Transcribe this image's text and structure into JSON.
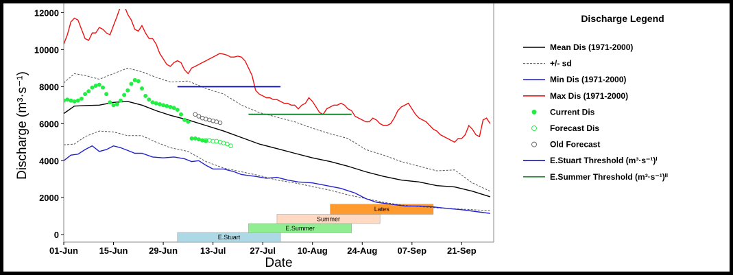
{
  "chart_data": {
    "type": "line",
    "xlabel": "Date",
    "ylabel": "Discharge (m³·s⁻¹)",
    "x_ticks": [
      "01-Jun",
      "15-Jun",
      "29-Jun",
      "13-Jul",
      "27-Jul",
      "10-Aug",
      "24-Aug",
      "07-Sep",
      "21-Sep"
    ],
    "y_ticks": [
      0,
      2000,
      4000,
      6000,
      8000,
      10000,
      12000
    ],
    "xlim": [
      0,
      121
    ],
    "ylim": [
      -400,
      12200
    ],
    "x_unit": "days since 01-Jun",
    "series": [
      {
        "name": "Mean Dis (1971-2000)",
        "color": "#000000",
        "style": "solid",
        "x": [
          0,
          3,
          6,
          10,
          14,
          18,
          22,
          26,
          30,
          35,
          40,
          45,
          50,
          55,
          60,
          65,
          70,
          75,
          80,
          85,
          90,
          95,
          100,
          105,
          110,
          115,
          120
        ],
        "y": [
          6550,
          6950,
          6980,
          7000,
          7150,
          7200,
          7000,
          6700,
          6450,
          6200,
          5900,
          5600,
          5250,
          4900,
          4650,
          4400,
          4150,
          3950,
          3700,
          3400,
          3150,
          2950,
          2850,
          2650,
          2580,
          2350,
          2050
        ]
      },
      {
        "name": "+/- sd (upper)",
        "color": "#555555",
        "style": "dashed",
        "x": [
          0,
          3,
          6,
          10,
          14,
          18,
          22,
          26,
          30,
          35,
          40,
          45,
          50,
          55,
          60,
          65,
          70,
          75,
          80,
          85,
          90,
          95,
          100,
          105,
          110,
          115,
          120
        ],
        "y": [
          8200,
          8700,
          8600,
          8400,
          8700,
          9000,
          8800,
          8500,
          8250,
          8300,
          7900,
          7600,
          7000,
          6600,
          6350,
          6100,
          5750,
          5450,
          5200,
          4600,
          4300,
          3950,
          3700,
          3450,
          3500,
          2800,
          2350
        ]
      },
      {
        "name": "+/- sd (lower)",
        "color": "#555555",
        "style": "dashed",
        "x": [
          0,
          3,
          6,
          10,
          14,
          18,
          22,
          26,
          30,
          35,
          40,
          45,
          50,
          55,
          60,
          65,
          70,
          75,
          80,
          85,
          90,
          95,
          100,
          105,
          110,
          115,
          120
        ],
        "y": [
          4850,
          4900,
          5300,
          5600,
          5550,
          5350,
          5350,
          5000,
          4700,
          4500,
          3950,
          3600,
          3400,
          3200,
          2950,
          2800,
          2600,
          2400,
          2150,
          1950,
          1750,
          1600,
          1520,
          1450,
          1400,
          1350,
          1300
        ]
      },
      {
        "name": "Min Dis (1971-2000)",
        "color": "#2222cc",
        "style": "solid",
        "x": [
          0,
          2,
          4,
          6,
          8,
          10,
          12,
          14,
          16,
          18,
          20,
          22,
          25,
          28,
          31,
          34,
          36,
          38,
          40,
          42,
          45,
          48,
          50,
          52,
          54,
          57,
          60,
          63,
          66,
          70,
          74,
          78,
          82,
          85,
          88,
          92,
          96,
          100,
          104,
          108,
          112,
          116,
          120
        ],
        "y": [
          4000,
          4300,
          4350,
          4600,
          4800,
          4500,
          4600,
          4800,
          4700,
          4550,
          4400,
          4400,
          4200,
          4150,
          4200,
          4100,
          3950,
          4000,
          3750,
          3550,
          3550,
          3400,
          3250,
          3200,
          3150,
          3050,
          3100,
          2950,
          2850,
          2800,
          2650,
          2500,
          2250,
          1950,
          1750,
          1650,
          1550,
          1550,
          1500,
          1420,
          1350,
          1250,
          1150
        ]
      },
      {
        "name": "Max Dis (1971-2000)",
        "color": "#ee1111",
        "style": "solid",
        "x": [
          0,
          1,
          2,
          3,
          4,
          5,
          6,
          7,
          8,
          9,
          10,
          11,
          12,
          13,
          14,
          15,
          16,
          17,
          18,
          19,
          20,
          21,
          22,
          23,
          24,
          25,
          26,
          27,
          28,
          29,
          30,
          31,
          32,
          33,
          34,
          35,
          36,
          37,
          38,
          39,
          40,
          41,
          42,
          43,
          44,
          45,
          46,
          47,
          48,
          49,
          50,
          51,
          52,
          53,
          54,
          55,
          56,
          57,
          58,
          59,
          60,
          61,
          62,
          63,
          64,
          65,
          66,
          67,
          68,
          69,
          70,
          71,
          72,
          73,
          74,
          75,
          76,
          77,
          78,
          79,
          80,
          81,
          82,
          83,
          84,
          85,
          86,
          87,
          88,
          89,
          90,
          91,
          92,
          93,
          94,
          95,
          96,
          97,
          98,
          99,
          100,
          101,
          102,
          103,
          104,
          105,
          106,
          107,
          108,
          109,
          110,
          111,
          112,
          113,
          114,
          115,
          116,
          117,
          118,
          119,
          120
        ],
        "y": [
          10300,
          10800,
          11500,
          11700,
          11600,
          11100,
          10600,
          10500,
          10900,
          10900,
          11200,
          11100,
          10900,
          10800,
          11300,
          11800,
          12350,
          12400,
          11900,
          11600,
          11100,
          11000,
          11300,
          10900,
          10600,
          10600,
          10300,
          9800,
          9500,
          9200,
          9100,
          9300,
          9400,
          9300,
          8900,
          8700,
          9000,
          9100,
          9200,
          9300,
          9400,
          9500,
          9600,
          9700,
          9800,
          9750,
          9700,
          9600,
          9600,
          9650,
          9600,
          9400,
          9000,
          8600,
          7800,
          7600,
          7500,
          7400,
          7400,
          7300,
          7300,
          7200,
          7100,
          7100,
          7000,
          7000,
          6800,
          7000,
          7100,
          7400,
          7200,
          6900,
          6600,
          6500,
          6800,
          6900,
          7000,
          7000,
          7100,
          7000,
          6800,
          6700,
          6400,
          6300,
          6200,
          6100,
          6100,
          6300,
          6200,
          6000,
          5900,
          5900,
          6000,
          6300,
          6700,
          6900,
          7000,
          7100,
          6800,
          6500,
          6300,
          6200,
          6100,
          5900,
          5700,
          5600,
          5400,
          5300,
          5200,
          5100,
          5000,
          5200,
          5200,
          5400,
          5900,
          5700,
          5400,
          5300,
          6200,
          6300,
          6000
        ]
      },
      {
        "name": "Current Dis",
        "color": "#22ee44",
        "style": "filled-dots",
        "x": [
          0,
          1,
          2,
          3,
          4,
          5,
          6,
          7,
          8,
          9,
          10,
          11,
          12,
          13,
          14,
          15,
          16,
          17,
          18,
          19,
          20,
          21,
          22,
          23,
          24,
          25,
          26,
          27,
          28,
          29,
          30,
          31,
          32,
          33,
          34,
          35,
          36,
          37,
          38,
          39,
          40
        ],
        "y": [
          7250,
          7300,
          7250,
          7200,
          7250,
          7350,
          7600,
          7750,
          7950,
          8050,
          8100,
          7950,
          7600,
          7150,
          7000,
          7050,
          7250,
          7550,
          7800,
          8150,
          8350,
          8300,
          7900,
          7500,
          7300,
          7150,
          7100,
          7050,
          7000,
          6950,
          6900,
          6850,
          6750,
          6500,
          6200,
          6100,
          5200,
          5200,
          5150,
          5100,
          5050
        ]
      },
      {
        "name": "Forecast Dis",
        "color": "#22ee44",
        "style": "open-dots",
        "x": [
          40,
          41,
          42,
          43,
          44,
          45,
          46,
          47
        ],
        "y": [
          5100,
          5100,
          5050,
          5050,
          5000,
          4950,
          4900,
          4800
        ]
      },
      {
        "name": "Old Forecast",
        "color": "#666666",
        "style": "open-dots",
        "x": [
          37,
          38,
          39,
          40,
          41,
          42,
          43,
          44
        ],
        "y": [
          6500,
          6400,
          6300,
          6250,
          6200,
          6150,
          6100,
          6050
        ]
      }
    ],
    "thresholds": [
      {
        "name": "E.Stuart Threshold",
        "color": "#1a1aa0",
        "x": [
          32,
          61
        ],
        "y": 8000
      },
      {
        "name": "E.Summer Threshold",
        "color": "#1a8a2e",
        "x": [
          52,
          81
        ],
        "y": 6500
      }
    ],
    "seasons": [
      {
        "label": "E.Stuart",
        "x": [
          32,
          61
        ],
        "y": [
          -400,
          120
        ],
        "color": "#add8e6"
      },
      {
        "label": "E.Summer",
        "x": [
          52,
          81
        ],
        "y": [
          100,
          600
        ],
        "color": "#90ee90"
      },
      {
        "label": "Summer",
        "x": [
          60,
          89
        ],
        "y": [
          600,
          1100
        ],
        "color": "#ffd9c2"
      },
      {
        "label": "Lates",
        "x": [
          75,
          104
        ],
        "y": [
          1100,
          1650
        ],
        "color": "#ff9a2e"
      }
    ],
    "legend": {
      "title": "Discharge Legend",
      "placement": "right",
      "items": [
        {
          "label": "Mean Dis (1971-2000)",
          "kind": "line",
          "color": "#000000"
        },
        {
          "label": "+/- sd",
          "kind": "dashed",
          "color": "#555555"
        },
        {
          "label": "Min Dis (1971-2000)",
          "kind": "line",
          "color": "#2222cc"
        },
        {
          "label": "Max Dis (1971-2000)",
          "kind": "line",
          "color": "#ee1111"
        },
        {
          "label": "Current Dis",
          "kind": "filled-dot",
          "color": "#22ee44"
        },
        {
          "label": "Forecast Dis",
          "kind": "open-dot",
          "color": "#22ee44"
        },
        {
          "label": "Old Forecast",
          "kind": "open-dot",
          "color": "#666666"
        },
        {
          "label": "E.Stuart Threshold (m³·s⁻¹)ⁱ",
          "kind": "line",
          "color": "#1a1aa0"
        },
        {
          "label": "E.Summer Threshold (m³·s⁻¹)ⁱⁱ",
          "kind": "line",
          "color": "#1a8a2e"
        }
      ]
    }
  }
}
